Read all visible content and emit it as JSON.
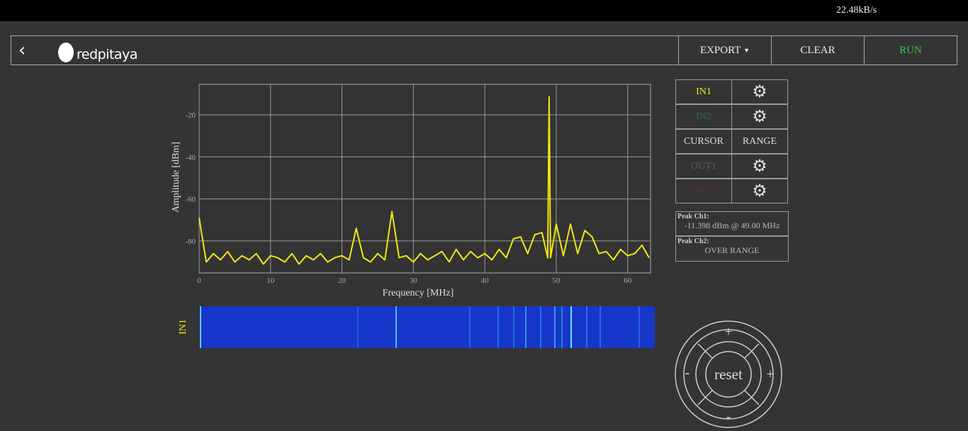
{
  "status_bar": {
    "rate": "22.48kB/s"
  },
  "header": {
    "logo": "redpitaya",
    "buttons": [
      "EXPORT",
      "CLEAR",
      "RUN"
    ]
  },
  "chart_data": {
    "type": "line",
    "xlabel": "Frequency [MHz]",
    "ylabel": "Amplitude [dBm]",
    "x": [
      0,
      1,
      2,
      3,
      4,
      5,
      6,
      7,
      8,
      9,
      10,
      11,
      12,
      13,
      14,
      15,
      16,
      17,
      18,
      19,
      20,
      21,
      22,
      23,
      24,
      25,
      26,
      27,
      28,
      29,
      30,
      31,
      32,
      33,
      34,
      35,
      36,
      37,
      38,
      39,
      40,
      41,
      42,
      43,
      44,
      45,
      46,
      47,
      48,
      48.8,
      49,
      49.2,
      50,
      51,
      52,
      53,
      54,
      55,
      56,
      57,
      58,
      59,
      60,
      61,
      62,
      63
    ],
    "values": [
      -69,
      -90,
      -86,
      -89,
      -85,
      -90,
      -87,
      -89,
      -86,
      -91,
      -87,
      -88,
      -90,
      -86,
      -91,
      -87,
      -89,
      -86,
      -90,
      -88,
      -87,
      -89,
      -74,
      -88,
      -90,
      -86,
      -89,
      -66,
      -88,
      -87,
      -90,
      -86,
      -89,
      -87,
      -85,
      -90,
      -84,
      -89,
      -85,
      -88,
      -86,
      -89,
      -84,
      -88,
      -79,
      -78,
      -86,
      -77,
      -76,
      -88,
      -11.4,
      -88,
      -72,
      -87,
      -72,
      -86,
      -75,
      -78,
      -86,
      -85,
      -89,
      -84,
      -87,
      -86,
      -82,
      -88
    ],
    "color": "#f2e617",
    "xlim": [
      0,
      63.2
    ],
    "ylim": [
      -95.2,
      -5.5
    ],
    "xticks": [
      0,
      10,
      20,
      30,
      40,
      50,
      60
    ],
    "yticks": [
      -20,
      -40,
      -60,
      -80
    ],
    "grid": true
  },
  "channels": [
    "IN1",
    "IN2",
    "CURSOR",
    "RANGE",
    "OUT1",
    "OUT2"
  ],
  "peaks": [
    {
      "label": "Peak Ch1:",
      "value": "-11.398 dBm @ 49.00 MHz"
    },
    {
      "label": "Peak Ch2:",
      "value": "OVER RANGE"
    }
  ],
  "waterfall": {
    "label": "IN1"
  },
  "zoom": {
    "up": "+",
    "left": "-",
    "center": "reset",
    "right": "+",
    "down": "-"
  }
}
